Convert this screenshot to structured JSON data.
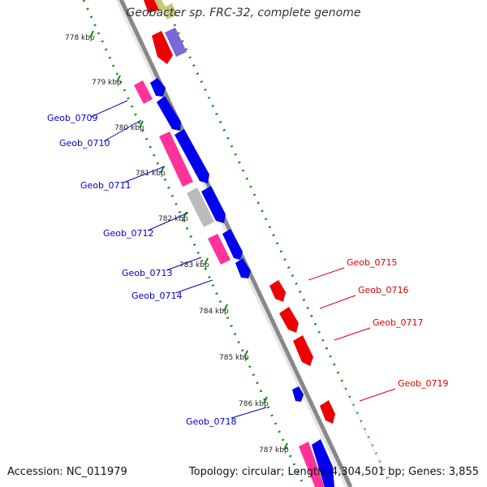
{
  "title": "Geobacter sp. FRC-32, complete genome",
  "footer": {
    "accession": "Accession: NC_011979",
    "summary": "Topology: circular; Length: 4,304,501 bp; Genes: 3,855"
  },
  "ticks": [
    "778 kbp",
    "779 kbp",
    "780 kbp",
    "781 kbp",
    "782 kbp",
    "783 kbp",
    "784 kbp",
    "785 kbp",
    "786 kbp",
    "787 kbp"
  ],
  "genes_left": [
    {
      "name": "Geob_0709",
      "color": "#0000cc"
    },
    {
      "name": "Geob_0710",
      "color": "#0000cc"
    },
    {
      "name": "Geob_0711",
      "color": "#0000cc"
    },
    {
      "name": "Geob_0712",
      "color": "#0000cc"
    },
    {
      "name": "Geob_0713",
      "color": "#0000cc"
    },
    {
      "name": "Geob_0714",
      "color": "#0000cc"
    },
    {
      "name": "Geob_0718",
      "color": "#0000cc"
    }
  ],
  "genes_right": [
    {
      "name": "Geob_0715",
      "color": "#dd0000"
    },
    {
      "name": "Geob_0716",
      "color": "#dd0000"
    },
    {
      "name": "Geob_0717",
      "color": "#dd0000"
    },
    {
      "name": "Geob_0719",
      "color": "#dd0000"
    }
  ],
  "colors": {
    "backbone": "#888888",
    "tick_dots": "#1a8a1a",
    "forward_gene": "#0000ee",
    "reverse_gene": "#ee0000",
    "rna_gene": "#ff3399",
    "pseudo_gene": "#bbbbbb"
  }
}
